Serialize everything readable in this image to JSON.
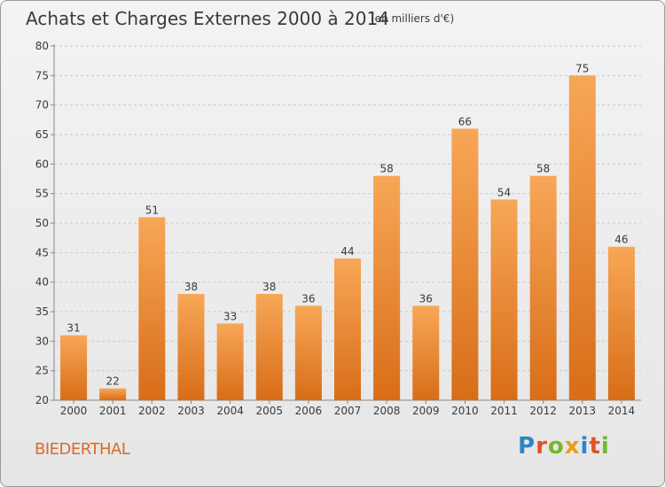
{
  "title": "Achats et Charges Externes 2000 à 2014",
  "subtitle": "(en milliers d'€)",
  "commune": "BIEDERTHAL",
  "logo": {
    "text": "Proxiti",
    "letters": [
      "P",
      "r",
      "o",
      "x",
      "i",
      "t",
      "i"
    ],
    "colors": [
      "#2f86c6",
      "#e0532b",
      "#76b82a",
      "#e5a11a",
      "#2f86c6",
      "#e0532b",
      "#76b82a"
    ]
  },
  "colors": {
    "bar_light": "#f7a757",
    "bar_dark": "#d86d18",
    "text": "#3a3a3a",
    "grid": "#c9c9c9"
  },
  "chart_data": {
    "type": "bar",
    "categories": [
      "2000",
      "2001",
      "2002",
      "2003",
      "2004",
      "2005",
      "2006",
      "2007",
      "2008",
      "2009",
      "2010",
      "2011",
      "2012",
      "2013",
      "2014"
    ],
    "values": [
      31,
      22,
      51,
      38,
      33,
      38,
      36,
      44,
      58,
      36,
      66,
      54,
      58,
      75,
      46
    ],
    "ylim": [
      20,
      80
    ],
    "yticks": [
      20,
      25,
      30,
      35,
      40,
      45,
      50,
      55,
      60,
      65,
      70,
      75,
      80
    ],
    "grid": true,
    "data_labels": true
  }
}
